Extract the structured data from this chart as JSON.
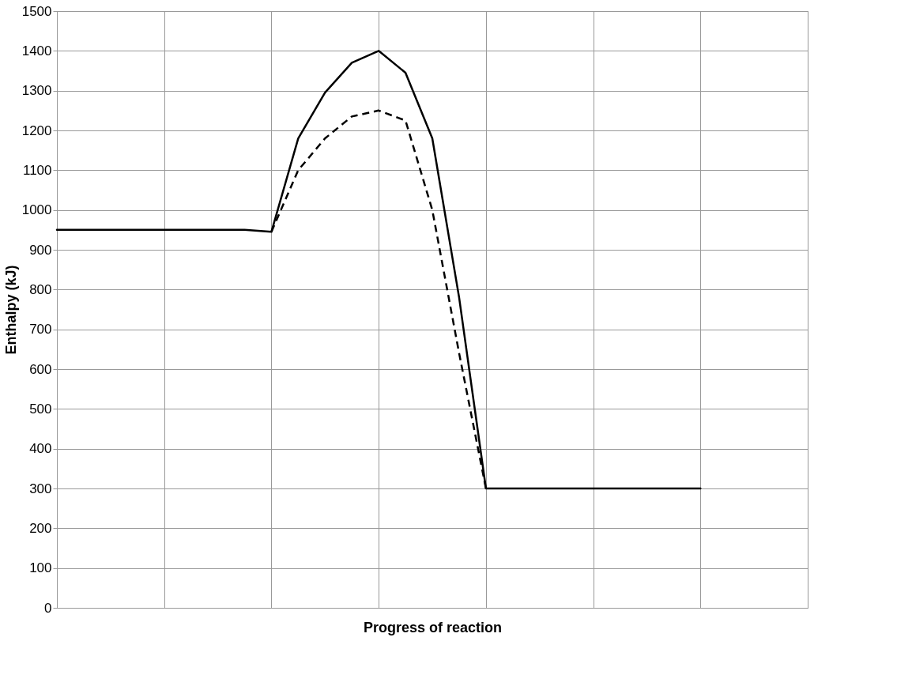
{
  "chart_data": {
    "type": "line",
    "xlabel": "Progress of reaction",
    "ylabel": "Enthalpy (kJ)",
    "categories": [
      null,
      null,
      null,
      null,
      null,
      null,
      null,
      null,
      null,
      null,
      null,
      null,
      null,
      null,
      null,
      null,
      null,
      null,
      null,
      null,
      null,
      null,
      null,
      null,
      null,
      null,
      null,
      null,
      null
    ],
    "ylim": [
      0,
      1500
    ],
    "yticks": [
      0,
      100,
      200,
      300,
      400,
      500,
      600,
      700,
      800,
      900,
      1000,
      1100,
      1200,
      1300,
      1400,
      1500
    ],
    "grid": true,
    "series": [
      {
        "color": "#000000",
        "line_style": "solid",
        "values": [
          950,
          950,
          950,
          950,
          950,
          950,
          950,
          950,
          945,
          1180,
          1295,
          1370,
          1400,
          1345,
          1180,
          780,
          300,
          300,
          300,
          300,
          300,
          300,
          300,
          300,
          300,
          null,
          null,
          null,
          null
        ]
      },
      {
        "color": "#000000",
        "line_style": "dashed",
        "values": [
          null,
          null,
          null,
          null,
          null,
          null,
          null,
          null,
          945,
          1100,
          1180,
          1235,
          1250,
          1225,
          1000,
          640,
          300,
          null,
          null,
          null,
          null,
          null,
          null,
          null,
          null,
          null,
          null,
          null,
          null
        ]
      }
    ]
  }
}
